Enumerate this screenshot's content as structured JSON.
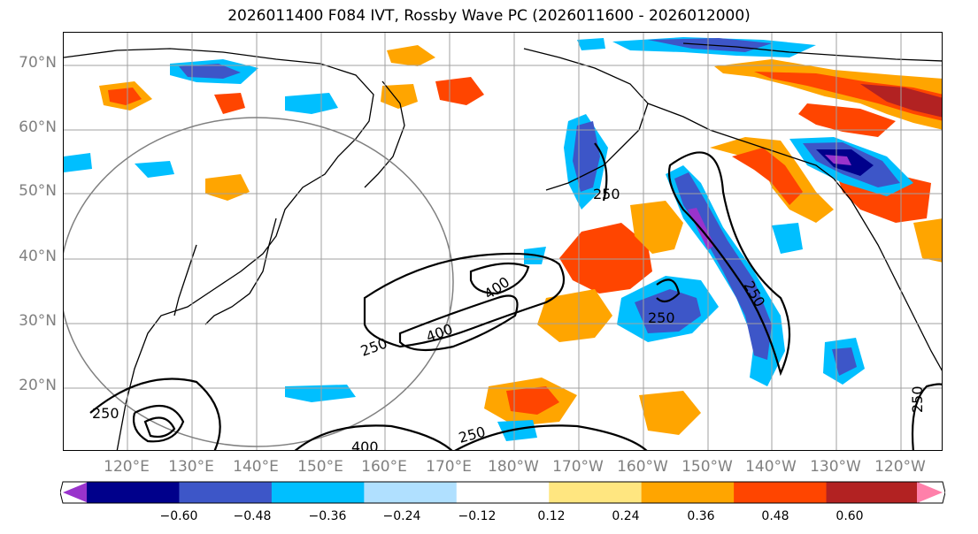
{
  "title": "2026011400 F084 IVT, Rossby Wave PC (2026011600 - 2026012000)",
  "lat_labels": [
    "70°N",
    "60°N",
    "50°N",
    "40°N",
    "30°N",
    "20°N"
  ],
  "lon_labels": [
    "120°E",
    "130°E",
    "140°E",
    "150°E",
    "160°E",
    "170°E",
    "180°W",
    "170°W",
    "160°W",
    "150°W",
    "140°W",
    "130°W",
    "120°W"
  ],
  "contour_labels": [
    "250",
    "250",
    "250",
    "250",
    "250",
    "250",
    "400",
    "400",
    "400",
    "250"
  ],
  "colorbar": {
    "ticks": [
      "−0.60",
      "−0.48",
      "−0.36",
      "−0.24",
      "−0.12",
      "0.12",
      "0.24",
      "0.36",
      "0.48",
      "0.60"
    ],
    "colors": [
      "#9933cc",
      "#00008b",
      "#3d56c8",
      "#00bfff",
      "#b0e0ff",
      "#ffffff",
      "#ffe680",
      "#ffa500",
      "#ff4500",
      "#b22222",
      "#ff80aa"
    ]
  },
  "colors": {
    "neg_strong": "#3d56c8",
    "neg_mid": "#00bfff",
    "pos_mid": "#ffa500",
    "pos_strong": "#ff4500",
    "grid": "#a0a0a0"
  }
}
